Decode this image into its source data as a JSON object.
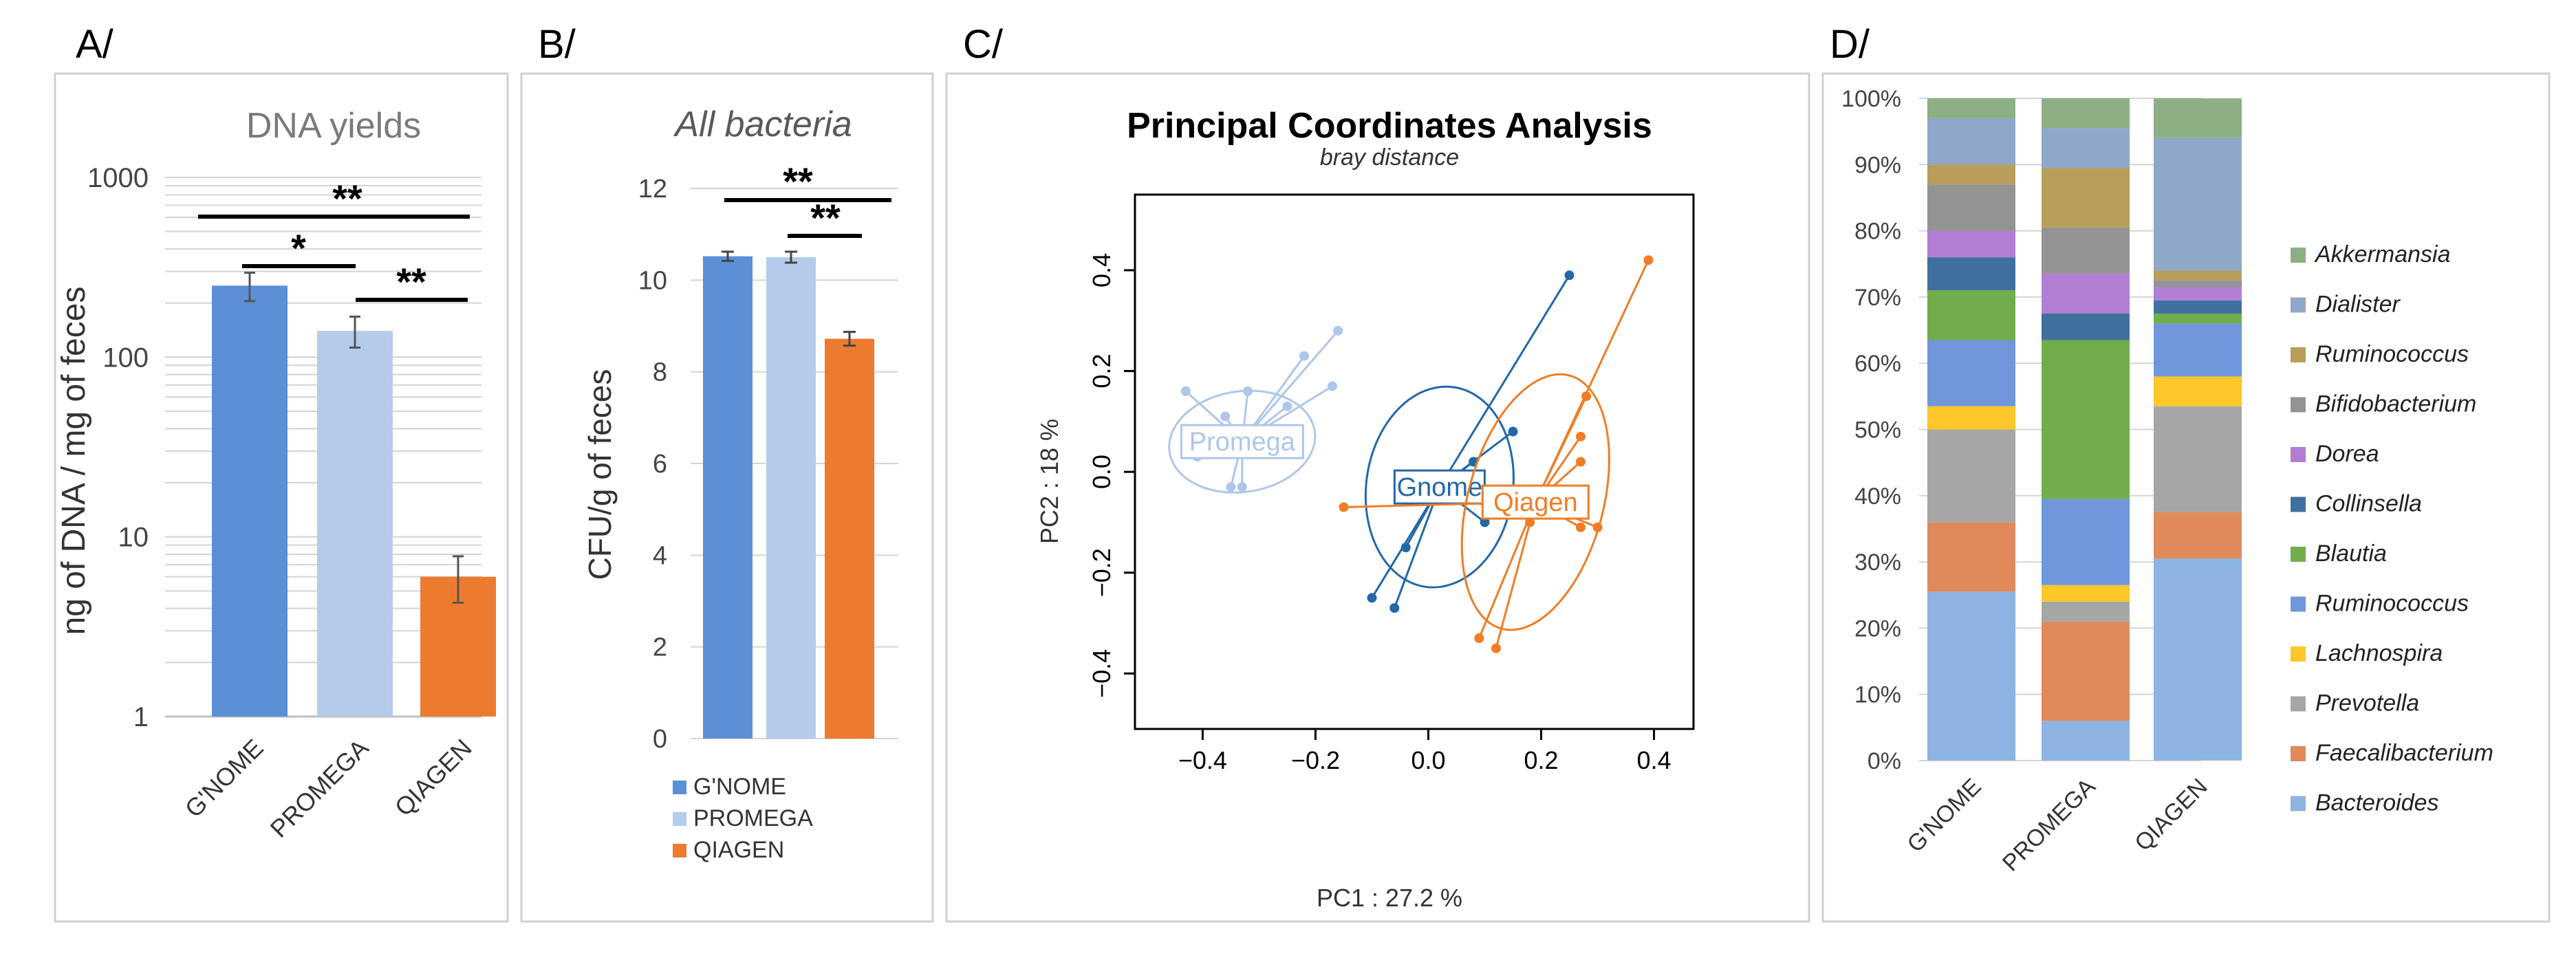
{
  "colors": {
    "gnome": "#5b8fd6",
    "promega": "#b4cbeb",
    "qiagen": "#ed7b2f",
    "gnome_dark": "#2368a8",
    "promega_light": "#aec6ea",
    "qiagen_pcoa": "#f07d24",
    "grid": "#d4d4d4",
    "axis_text": "#595959"
  },
  "panels": {
    "A": {
      "letter": "A/"
    },
    "B": {
      "letter": "B/"
    },
    "C": {
      "letter": "C/"
    },
    "D": {
      "letter": "D/"
    }
  },
  "chart_data": [
    {
      "id": "A",
      "type": "bar",
      "title": "DNA yields",
      "ylabel": "ng of DNA / mg of feces",
      "yscale": "log",
      "ylim": [
        1,
        1000
      ],
      "yticks": [
        "1",
        "10",
        "100",
        "1000"
      ],
      "categories": [
        "G'NOME",
        "PROMEGA",
        "QIAGEN"
      ],
      "values": [
        250,
        140,
        6
      ],
      "errors_low": [
        205,
        113,
        4.3
      ],
      "errors_high": [
        295,
        168,
        7.8
      ],
      "significance": [
        "**",
        "*",
        "**"
      ]
    },
    {
      "id": "B",
      "type": "bar",
      "title": "All bacteria",
      "ylabel": "CFU/g of feces",
      "ylim": [
        0,
        12
      ],
      "yticks": [
        "0",
        "2",
        "4",
        "6",
        "8",
        "10",
        "12"
      ],
      "categories": [
        "G'NOME",
        "PROMEGA",
        "QIAGEN"
      ],
      "values": [
        10.52,
        10.5,
        8.72
      ],
      "errors": [
        0.1,
        0.12,
        0.15
      ],
      "significance": [
        "**",
        "**"
      ],
      "legend": [
        "G'NOME",
        "PROMEGA",
        "QIAGEN"
      ]
    },
    {
      "id": "C",
      "type": "scatter",
      "title": "Principal Coordinates Analysis",
      "subtitle": "bray distance",
      "xlabel": "PC1 :  27.2 %",
      "ylabel": "PC2 :  18 %",
      "xlim": [
        -0.52,
        0.47
      ],
      "ylim": [
        -0.51,
        0.55
      ],
      "xticks": [
        "−0.4",
        "−0.2",
        "0.0",
        "0.2",
        "0.4"
      ],
      "yticks": [
        "−0.4",
        "−0.2",
        "0.0",
        "0.2",
        "0.4"
      ],
      "groups": [
        {
          "name": "Promega",
          "centroid": [
            -0.33,
            0.06
          ],
          "ellipse": {
            "rx": 0.13,
            "ry": 0.1
          },
          "points": [
            [
              -0.43,
              0.16
            ],
            [
              -0.36,
              0.11
            ],
            [
              -0.32,
              0.16
            ],
            [
              -0.25,
              0.13
            ],
            [
              -0.17,
              0.17
            ],
            [
              -0.22,
              0.23
            ],
            [
              -0.16,
              0.28
            ],
            [
              -0.41,
              0.03
            ],
            [
              -0.35,
              -0.03
            ],
            [
              -0.33,
              -0.03
            ]
          ]
        },
        {
          "name": "Gnome",
          "centroid": [
            0.02,
            -0.03
          ],
          "ellipse": {
            "rx": 0.13,
            "ry": 0.2
          },
          "points": [
            [
              0.25,
              0.39
            ],
            [
              0.15,
              0.08
            ],
            [
              0.08,
              0.02
            ],
            [
              0.07,
              -0.05
            ],
            [
              0.1,
              -0.1
            ],
            [
              -0.04,
              -0.15
            ],
            [
              -0.1,
              -0.25
            ],
            [
              -0.06,
              -0.27
            ],
            [
              0.13,
              -0.08
            ]
          ]
        },
        {
          "name": "Qiagen",
          "centroid": [
            0.19,
            -0.06
          ],
          "ellipse": {
            "rx": 0.12,
            "ry": 0.26
          },
          "points": [
            [
              0.39,
              0.42
            ],
            [
              0.28,
              0.15
            ],
            [
              0.27,
              0.07
            ],
            [
              0.27,
              0.02
            ],
            [
              0.3,
              -0.11
            ],
            [
              0.27,
              -0.11
            ],
            [
              0.22,
              -0.06
            ],
            [
              0.18,
              -0.1
            ],
            [
              0.09,
              -0.33
            ],
            [
              0.12,
              -0.35
            ],
            [
              -0.15,
              -0.07
            ]
          ]
        }
      ]
    },
    {
      "id": "D",
      "type": "bar",
      "stacked": true,
      "ylim": [
        0,
        100
      ],
      "yticks": [
        "0%",
        "10%",
        "20%",
        "30%",
        "40%",
        "50%",
        "60%",
        "70%",
        "80%",
        "90%",
        "100%"
      ],
      "categories": [
        "G'NOME",
        "PROMEGA",
        "QIAGEN"
      ],
      "series": [
        {
          "name": "Bacteroides",
          "color": "#8db4e2",
          "values": [
            25.5,
            6,
            30.5
          ]
        },
        {
          "name": "Faecalibacterium",
          "color": "#e08a5c",
          "values": [
            10.5,
            15,
            7
          ]
        },
        {
          "name": "Prevotella",
          "color": "#a6a6a6",
          "values": [
            14,
            3,
            16
          ]
        },
        {
          "name": "Lachnospira",
          "color": "#ffc729",
          "values": [
            3.5,
            2.5,
            4.5
          ]
        },
        {
          "name": "Ruminococcus",
          "color": "#6f97da",
          "values": [
            10,
            13,
            8
          ]
        },
        {
          "name": "Blautia",
          "color": "#72ad4c",
          "values": [
            7.5,
            24,
            1.5
          ]
        },
        {
          "name": "Collinsella",
          "color": "#40709e",
          "values": [
            5,
            4,
            2
          ]
        },
        {
          "name": "Dorea",
          "color": "#b27ed3",
          "values": [
            4,
            6,
            2
          ]
        },
        {
          "name": "Bifidobacterium",
          "color": "#939393",
          "values": [
            7,
            7,
            1
          ]
        },
        {
          "name": "Ruminococcus",
          "color": "#b89d5b",
          "values": [
            3,
            9,
            1.5
          ]
        },
        {
          "name": "Dialister",
          "color": "#8fa7c9",
          "values": [
            7,
            6,
            20
          ]
        },
        {
          "name": "Akkermansia",
          "color": "#8cb083",
          "values": [
            3,
            4.5,
            6
          ]
        }
      ]
    }
  ]
}
